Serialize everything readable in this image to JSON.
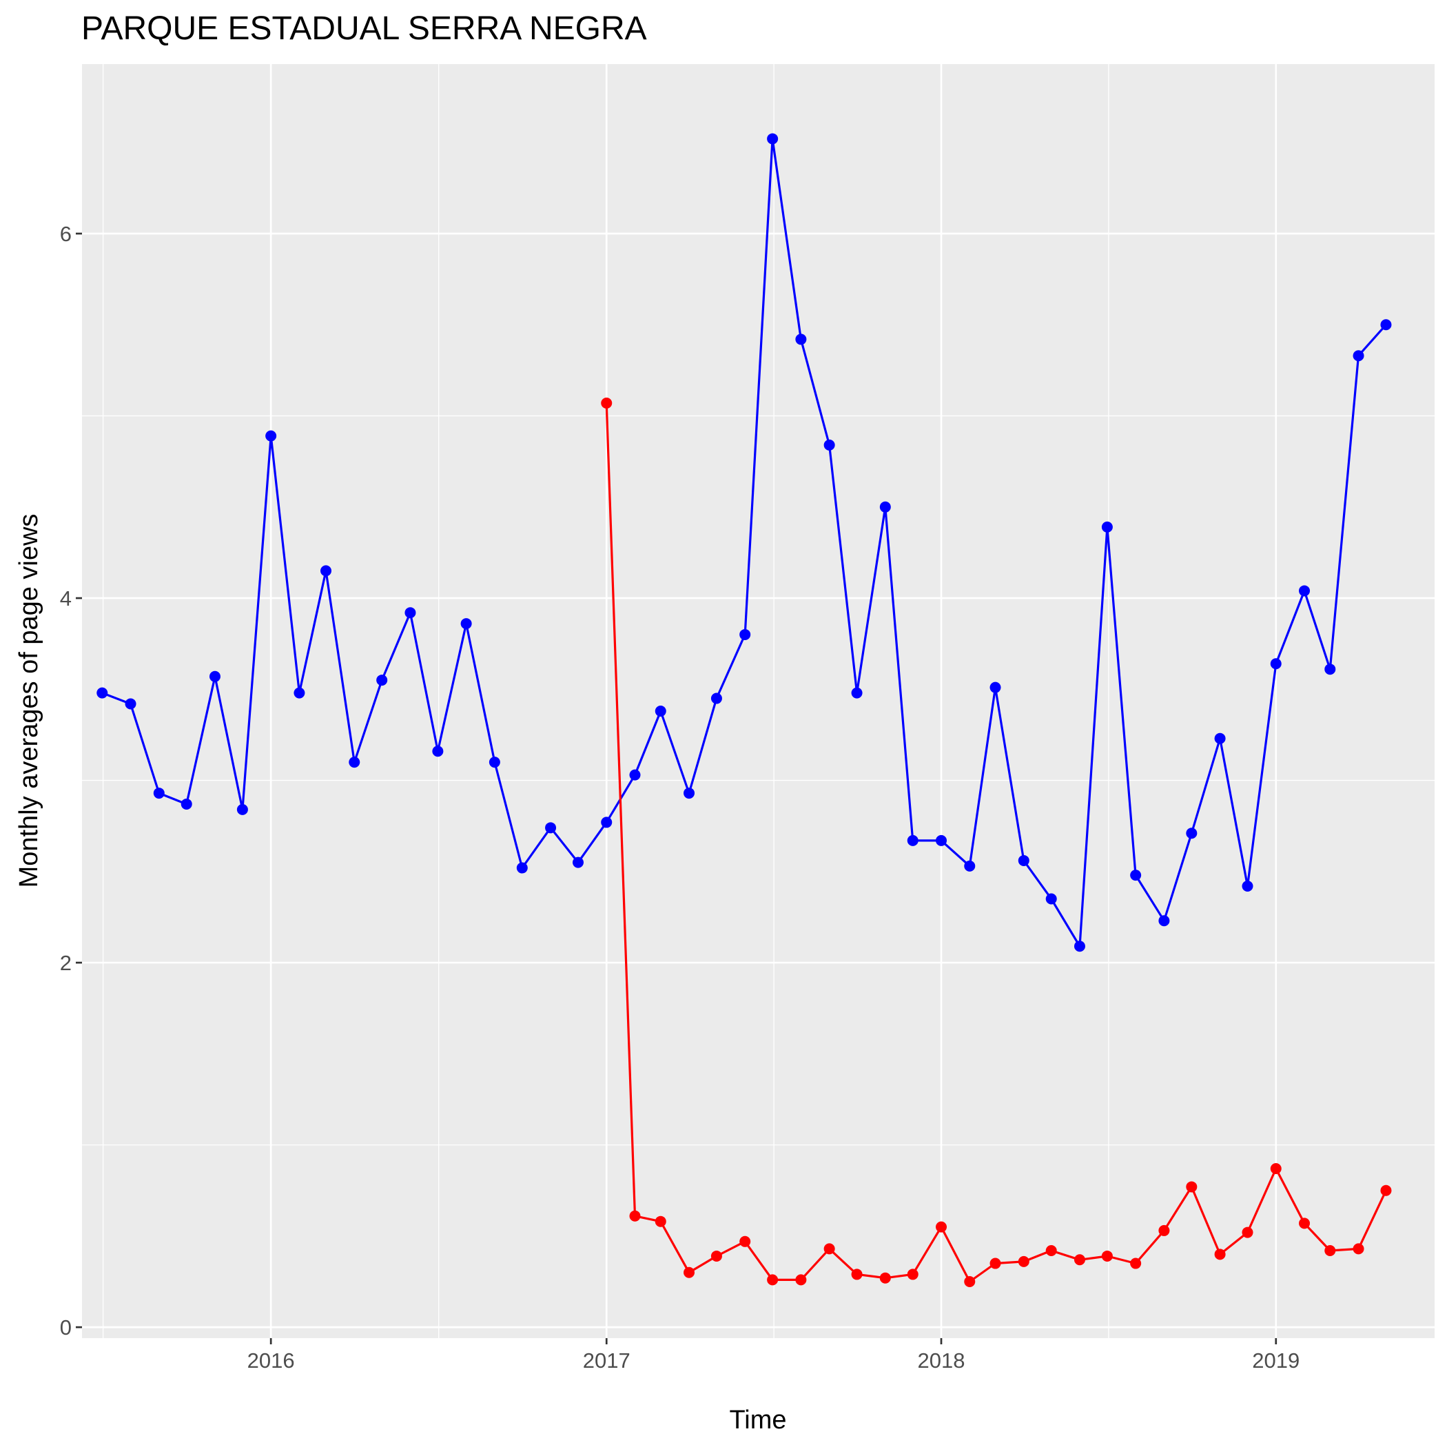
{
  "chart_data": {
    "type": "line",
    "title": "PARQUE ESTADUAL SERRA NEGRA",
    "xlabel": "Time",
    "ylabel": "Monthly averages of page views",
    "xlim": [
      "2015-06-09",
      "2019-06-23"
    ],
    "ylim": [
      -0.06,
      6.93
    ],
    "x_ticks": [
      {
        "date": "2016-01-01",
        "label": "2016"
      },
      {
        "date": "2017-01-01",
        "label": "2017"
      },
      {
        "date": "2018-01-01",
        "label": "2018"
      },
      {
        "date": "2019-01-01",
        "label": "2019"
      }
    ],
    "y_ticks": [
      0,
      2,
      4,
      6
    ],
    "y_minor": [
      1,
      3,
      5
    ],
    "grid": true,
    "marker": "circle",
    "series": [
      {
        "color": "#0000ff",
        "points": [
          [
            "2015-07-01",
            3.48
          ],
          [
            "2015-08-01",
            3.42
          ],
          [
            "2015-09-01",
            2.93
          ],
          [
            "2015-10-01",
            2.87
          ],
          [
            "2015-11-01",
            3.57
          ],
          [
            "2015-12-01",
            2.84
          ],
          [
            "2016-01-01",
            4.89
          ],
          [
            "2016-02-01",
            3.48
          ],
          [
            "2016-03-01",
            4.15
          ],
          [
            "2016-04-01",
            3.1
          ],
          [
            "2016-05-01",
            3.55
          ],
          [
            "2016-06-01",
            3.92
          ],
          [
            "2016-07-01",
            3.16
          ],
          [
            "2016-08-01",
            3.86
          ],
          [
            "2016-09-01",
            3.1
          ],
          [
            "2016-10-01",
            2.52
          ],
          [
            "2016-11-01",
            2.74
          ],
          [
            "2016-12-01",
            2.55
          ],
          [
            "2017-01-01",
            2.77
          ],
          [
            "2017-02-01",
            3.03
          ],
          [
            "2017-03-01",
            3.38
          ],
          [
            "2017-04-01",
            2.93
          ],
          [
            "2017-05-01",
            3.45
          ],
          [
            "2017-06-01",
            3.8
          ],
          [
            "2017-07-01",
            6.52
          ],
          [
            "2017-08-01",
            5.42
          ],
          [
            "2017-09-01",
            4.84
          ],
          [
            "2017-10-01",
            3.48
          ],
          [
            "2017-11-01",
            4.5
          ],
          [
            "2017-12-01",
            2.67
          ],
          [
            "2018-01-01",
            2.67
          ],
          [
            "2018-02-01",
            2.53
          ],
          [
            "2018-03-01",
            3.51
          ],
          [
            "2018-04-01",
            2.56
          ],
          [
            "2018-05-01",
            2.35
          ],
          [
            "2018-06-01",
            2.09
          ],
          [
            "2018-07-01",
            4.39
          ],
          [
            "2018-08-01",
            2.48
          ],
          [
            "2018-09-01",
            2.23
          ],
          [
            "2018-10-01",
            2.71
          ],
          [
            "2018-11-01",
            3.23
          ],
          [
            "2018-12-01",
            2.42
          ],
          [
            "2019-01-01",
            3.64
          ],
          [
            "2019-02-01",
            4.04
          ],
          [
            "2019-03-01",
            3.61
          ],
          [
            "2019-04-01",
            5.33
          ],
          [
            "2019-05-01",
            5.5
          ]
        ]
      },
      {
        "color": "#ff0000",
        "points": [
          [
            "2017-01-01",
            5.07
          ],
          [
            "2017-02-01",
            0.61
          ],
          [
            "2017-03-01",
            0.58
          ],
          [
            "2017-04-01",
            0.3
          ],
          [
            "2017-05-01",
            0.39
          ],
          [
            "2017-06-01",
            0.47
          ],
          [
            "2017-07-01",
            0.26
          ],
          [
            "2017-08-01",
            0.26
          ],
          [
            "2017-09-01",
            0.43
          ],
          [
            "2017-10-01",
            0.29
          ],
          [
            "2017-11-01",
            0.27
          ],
          [
            "2017-12-01",
            0.29
          ],
          [
            "2018-01-01",
            0.55
          ],
          [
            "2018-02-01",
            0.25
          ],
          [
            "2018-03-01",
            0.35
          ],
          [
            "2018-04-01",
            0.36
          ],
          [
            "2018-05-01",
            0.42
          ],
          [
            "2018-06-01",
            0.37
          ],
          [
            "2018-07-01",
            0.39
          ],
          [
            "2018-08-01",
            0.35
          ],
          [
            "2018-09-01",
            0.53
          ],
          [
            "2018-10-01",
            0.77
          ],
          [
            "2018-11-01",
            0.4
          ],
          [
            "2018-12-01",
            0.52
          ],
          [
            "2019-01-01",
            0.87
          ],
          [
            "2019-02-01",
            0.57
          ],
          [
            "2019-03-01",
            0.42
          ],
          [
            "2019-04-01",
            0.43
          ],
          [
            "2019-05-01",
            0.75
          ]
        ]
      }
    ]
  }
}
